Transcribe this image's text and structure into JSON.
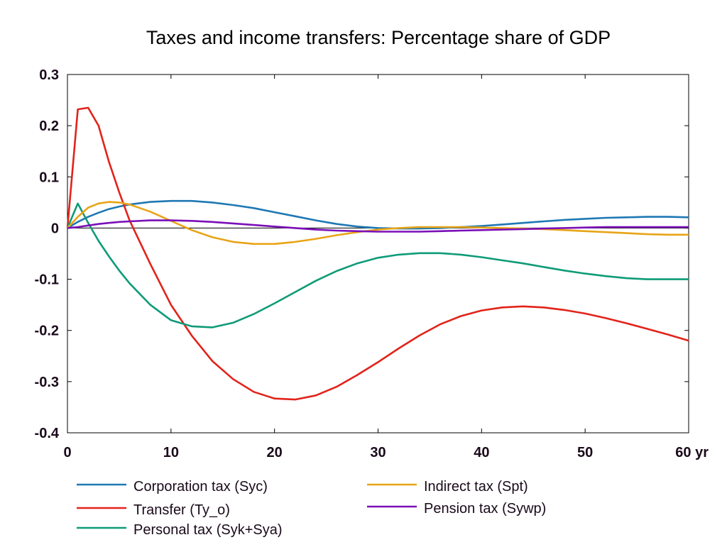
{
  "chart_data": {
    "type": "line",
    "title": "Taxes and income transfers: Percentage share of GDP",
    "xlabel": "",
    "ylabel": "",
    "x_unit_label": "yr",
    "xlim": [
      0,
      60
    ],
    "ylim": [
      -0.4,
      0.3
    ],
    "x_ticks": [
      0,
      10,
      20,
      30,
      40,
      50,
      60
    ],
    "x_tick_labels": [
      "0",
      "10",
      "20",
      "30",
      "40",
      "50",
      "60 yr"
    ],
    "y_ticks": [
      -0.4,
      -0.3,
      -0.2,
      -0.1,
      0,
      0.1,
      0.2,
      0.3
    ],
    "y_tick_labels": [
      "-0.4",
      "-0.3",
      "-0.2",
      "-0.1",
      "0",
      "0.1",
      "0.2",
      "0.3"
    ],
    "grid": false,
    "legend_position": "bottom",
    "series": [
      {
        "name": "Corporation tax (Syc)",
        "color": "#1f78b4",
        "x": [
          0,
          1,
          2,
          3,
          4,
          5,
          6,
          8,
          10,
          12,
          14,
          16,
          18,
          20,
          22,
          24,
          26,
          28,
          30,
          32,
          34,
          36,
          38,
          40,
          42,
          44,
          46,
          48,
          50,
          52,
          54,
          56,
          58,
          60
        ],
        "y": [
          0,
          0.012,
          0.022,
          0.03,
          0.037,
          0.042,
          0.046,
          0.051,
          0.053,
          0.053,
          0.05,
          0.045,
          0.039,
          0.031,
          0.023,
          0.015,
          0.008,
          0.003,
          0.0,
          -0.001,
          -0.001,
          0.0,
          0.002,
          0.004,
          0.007,
          0.01,
          0.013,
          0.016,
          0.018,
          0.02,
          0.021,
          0.022,
          0.022,
          0.021
        ]
      },
      {
        "name": "Transfer (Ty_o)",
        "color": "#e2231a",
        "x": [
          0,
          1,
          2,
          3,
          4,
          5,
          6,
          8,
          10,
          12,
          14,
          16,
          18,
          20,
          22,
          24,
          26,
          28,
          30,
          32,
          34,
          36,
          38,
          40,
          42,
          44,
          46,
          48,
          50,
          52,
          54,
          56,
          58,
          60
        ],
        "y": [
          0,
          0.232,
          0.235,
          0.2,
          0.13,
          0.07,
          0.015,
          -0.07,
          -0.15,
          -0.21,
          -0.26,
          -0.295,
          -0.32,
          -0.333,
          -0.335,
          -0.327,
          -0.31,
          -0.287,
          -0.262,
          -0.235,
          -0.21,
          -0.188,
          -0.172,
          -0.161,
          -0.155,
          -0.153,
          -0.155,
          -0.16,
          -0.167,
          -0.176,
          -0.186,
          -0.197,
          -0.208,
          -0.22
        ]
      },
      {
        "name": "Personal tax (Syk+Sya)",
        "color": "#0e9b78",
        "x": [
          0,
          1,
          2,
          3,
          4,
          5,
          6,
          8,
          10,
          12,
          14,
          16,
          18,
          20,
          22,
          24,
          26,
          28,
          30,
          32,
          34,
          36,
          38,
          40,
          42,
          44,
          46,
          48,
          50,
          52,
          54,
          56,
          58,
          60
        ],
        "y": [
          0,
          0.048,
          0.01,
          -0.025,
          -0.055,
          -0.083,
          -0.108,
          -0.15,
          -0.18,
          -0.192,
          -0.194,
          -0.185,
          -0.168,
          -0.147,
          -0.125,
          -0.103,
          -0.084,
          -0.069,
          -0.058,
          -0.052,
          -0.049,
          -0.049,
          -0.052,
          -0.057,
          -0.063,
          -0.069,
          -0.076,
          -0.083,
          -0.089,
          -0.094,
          -0.098,
          -0.1,
          -0.1,
          -0.1
        ]
      },
      {
        "name": "Indirect tax (Spt)",
        "color": "#e8a417",
        "x": [
          0,
          1,
          2,
          3,
          4,
          5,
          6,
          8,
          10,
          12,
          14,
          16,
          18,
          20,
          22,
          24,
          26,
          28,
          30,
          32,
          34,
          36,
          38,
          40,
          42,
          44,
          46,
          48,
          50,
          52,
          54,
          56,
          58,
          60
        ],
        "y": [
          0,
          0.022,
          0.04,
          0.048,
          0.051,
          0.05,
          0.046,
          0.032,
          0.014,
          -0.004,
          -0.018,
          -0.027,
          -0.031,
          -0.031,
          -0.027,
          -0.021,
          -0.014,
          -0.008,
          -0.003,
          0.0,
          0.002,
          0.002,
          0.002,
          0.001,
          0.0,
          -0.001,
          -0.002,
          -0.004,
          -0.006,
          -0.008,
          -0.01,
          -0.012,
          -0.013,
          -0.013
        ]
      },
      {
        "name": "Pension tax (Sywp)",
        "color": "#7b0fb8",
        "x": [
          0,
          1,
          2,
          3,
          4,
          5,
          6,
          8,
          10,
          12,
          14,
          16,
          18,
          20,
          22,
          24,
          26,
          28,
          30,
          32,
          34,
          36,
          38,
          40,
          42,
          44,
          46,
          48,
          50,
          52,
          54,
          56,
          58,
          60
        ],
        "y": [
          0,
          0.002,
          0.005,
          0.008,
          0.01,
          0.012,
          0.013,
          0.015,
          0.015,
          0.014,
          0.012,
          0.009,
          0.006,
          0.003,
          0.0,
          -0.003,
          -0.005,
          -0.006,
          -0.007,
          -0.007,
          -0.007,
          -0.006,
          -0.005,
          -0.004,
          -0.003,
          -0.002,
          -0.001,
          0.0,
          0.001,
          0.002,
          0.002,
          0.002,
          0.002,
          0.002
        ]
      }
    ]
  }
}
